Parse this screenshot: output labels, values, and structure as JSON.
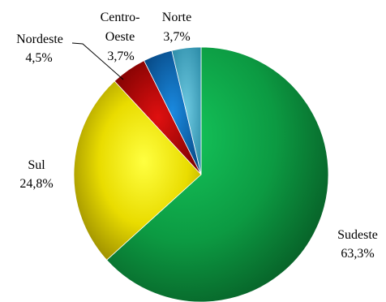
{
  "chart_data": {
    "type": "pie",
    "title": "",
    "slices": [
      {
        "name": "Sudeste",
        "value": 63.3,
        "value_label": "63,3%",
        "color": "#0fa84a"
      },
      {
        "name": "Sul",
        "value": 24.8,
        "value_label": "24,8%",
        "color": "#f2e400"
      },
      {
        "name": "Nordeste",
        "value": 4.5,
        "value_label": "4,5%",
        "color": "#c00000"
      },
      {
        "name": "Centro-Oeste",
        "name_lines": [
          "Centro-",
          "Oeste"
        ],
        "value": 3.7,
        "value_label": "3,7%",
        "color": "#0a72cc"
      },
      {
        "name": "Norte",
        "value": 3.7,
        "value_label": "3,7%",
        "color": "#4fb4cf"
      }
    ],
    "start_angle": "12 o'clock",
    "direction": "clockwise",
    "legend": "none"
  }
}
